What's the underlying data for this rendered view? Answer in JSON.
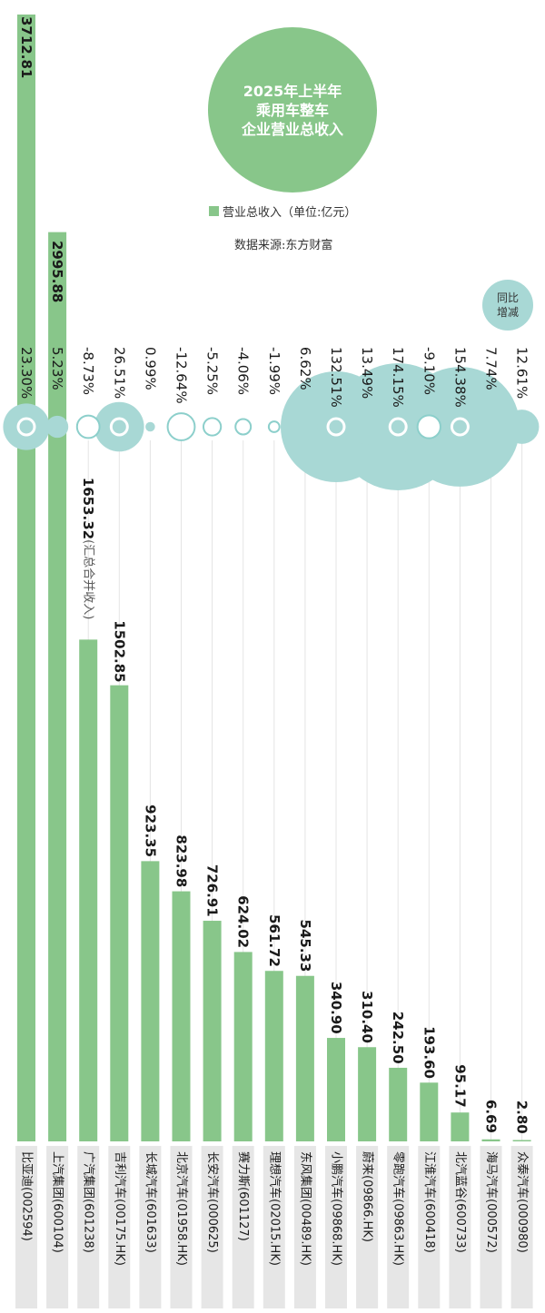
{
  "title": {
    "line1": "2025年上半年",
    "line2": "乘用车整车",
    "line3": "企业营业总收入"
  },
  "legend": {
    "label": "营业总收入（单位:亿元）"
  },
  "source": "数据来源:东方财富",
  "yoy_badge": {
    "line1": "同比",
    "line2": "增减"
  },
  "colors": {
    "bar": "#88c68a",
    "bubble": "#a8d8d5",
    "ring": "#8ccfcb",
    "label_bg": "#e6e6e6",
    "text": "#1a1a1a"
  },
  "chart_data": {
    "type": "bar",
    "title": "2025年上半年 乘用车整车 企业营业总收入",
    "ylabel": "营业总收入（单位:亿元）",
    "ylim": [
      0,
      3712.81
    ],
    "categories": [
      "比亚迪(002594)",
      "上汽集团(600104)",
      "广汽集团(601238)",
      "吉利汽车(00175.HK)",
      "长城汽车(601633)",
      "北京汽车(01958.HK)",
      "长安汽车(000625)",
      "赛力斯(601127)",
      "理想汽车(02015.HK)",
      "东风集团(00489.HK)",
      "小鹏汽车(09868.HK)",
      "蔚来(09866.HK)",
      "零跑汽车(09863.HK)",
      "江淮汽车(600418)",
      "北汽蓝谷(600733)",
      "海马汽车(000572)",
      "众泰汽车(000980)"
    ],
    "values": [
      3712.81,
      2995.88,
      1653.32,
      1502.85,
      923.35,
      823.98,
      726.91,
      624.02,
      561.72,
      545.33,
      340.9,
      310.4,
      242.5,
      193.6,
      95.17,
      6.69,
      2.8
    ],
    "value_labels": [
      "3712.81",
      "2995.88",
      "1653.32",
      "1502.85",
      "923.35",
      "823.98",
      "726.91",
      "624.02",
      "561.72",
      "545.33",
      "340.90",
      "310.40",
      "242.50",
      "193.60",
      "95.17",
      "6.69",
      "2.80"
    ],
    "value_notes": [
      "",
      "",
      "(汇总合并收入)",
      "",
      "",
      "",
      "",
      "",
      "",
      "",
      "",
      "",
      "",
      "",
      "",
      "",
      ""
    ],
    "yoy_change_pct": [
      23.3,
      5.23,
      -8.73,
      26.51,
      0.99,
      -12.64,
      -5.25,
      -4.06,
      -1.99,
      6.62,
      132.51,
      13.49,
      174.15,
      -9.1,
      154.38,
      7.74,
      12.61
    ],
    "yoy_labels": [
      "23.30%",
      "5.23%",
      "-8.73%",
      "26.51%",
      "0.99%",
      "-12.64%",
      "-5.25%",
      "-4.06%",
      "-1.99%",
      "6.62%",
      "132.51%",
      "13.49%",
      "174.15%",
      "-9.10%",
      "154.38%",
      "7.74%",
      "12.61%"
    ]
  }
}
